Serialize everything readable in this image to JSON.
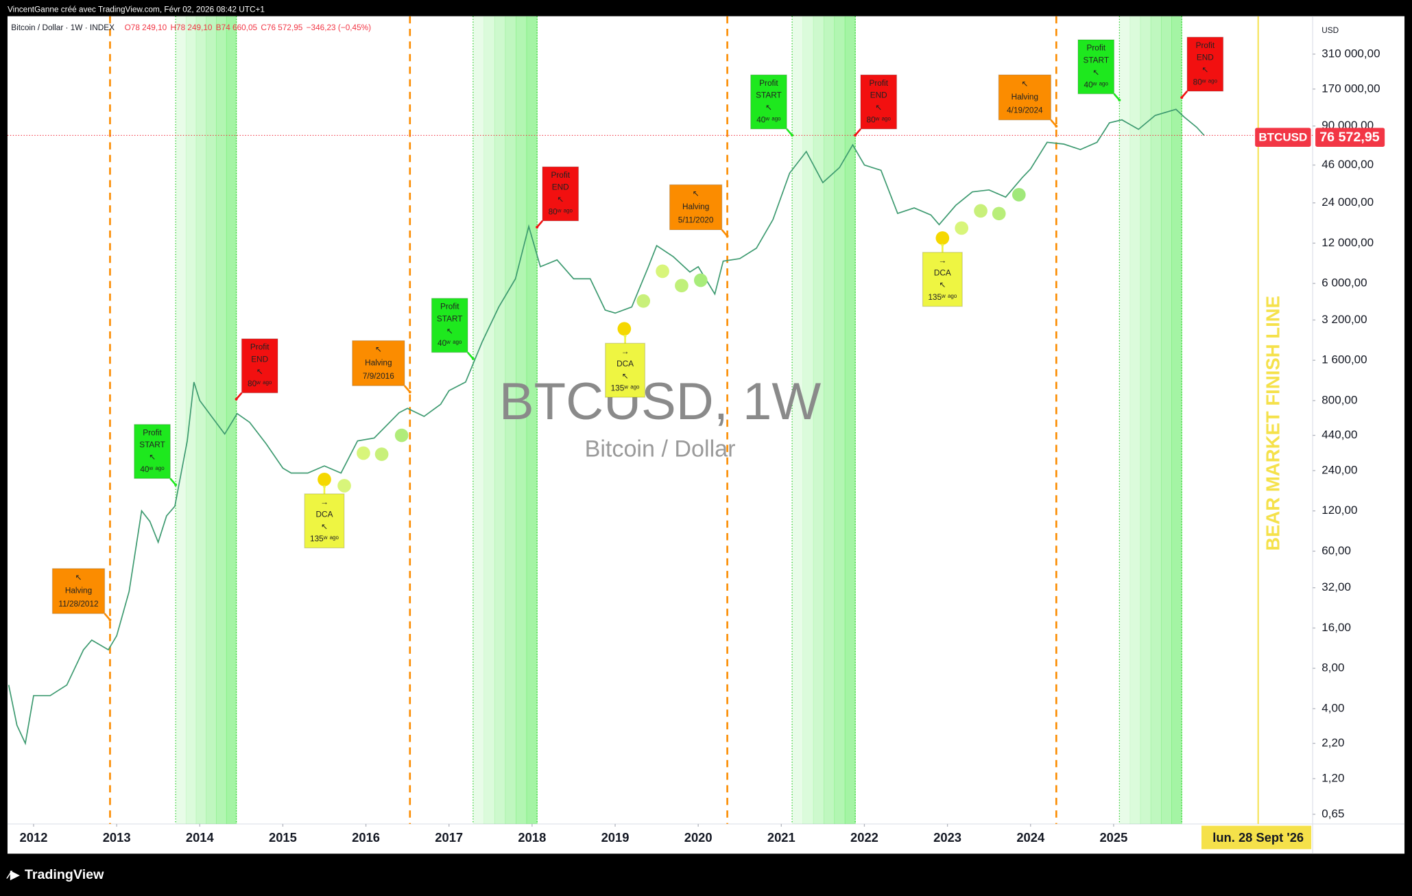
{
  "header": {
    "credit": "VincentGanne créé avec TradingView.com, Févr 02, 2026 08:42 UTC+1",
    "brand": "TradingView"
  },
  "chart_data": {
    "type": "line",
    "title": "BTCUSD, 1W",
    "subtitle": "Bitcoin / Dollar",
    "symbol_line": "Bitcoin / Dollar · 1W · INDEX",
    "ohlc": [
      "O78 249,10",
      "H78 249,10",
      "B74 660,05",
      "C76 572,95",
      "−346,23 (−0,45%)"
    ],
    "currency": "USD",
    "log_scale": true,
    "grid": false,
    "xlim": [
      2011.686,
      2027.396
    ],
    "xticks": [
      2012,
      2013,
      2014,
      2015,
      2016,
      2017,
      2018,
      2019,
      2020,
      2021,
      2022,
      2023,
      2024,
      2025
    ],
    "ylim": [
      0.55,
      595000
    ],
    "yticks": [
      {
        "value": 310000,
        "label": "310 000,00"
      },
      {
        "value": 170000,
        "label": "170 000,00"
      },
      {
        "value": 90000,
        "label": "90 000,00"
      },
      {
        "value": 46000,
        "label": "46 000,00"
      },
      {
        "value": 24000,
        "label": "24 000,00"
      },
      {
        "value": 12000,
        "label": "12 000,00"
      },
      {
        "value": 6000,
        "label": "6 000,00"
      },
      {
        "value": 3200,
        "label": "3 200,00"
      },
      {
        "value": 1600,
        "label": "1 600,00"
      },
      {
        "value": 800,
        "label": "800,00"
      },
      {
        "value": 440,
        "label": "440,00"
      },
      {
        "value": 240,
        "label": "240,00"
      },
      {
        "value": 120,
        "label": "120,00"
      },
      {
        "value": 60,
        "label": "60,00"
      },
      {
        "value": 32,
        "label": "32,00"
      },
      {
        "value": 16,
        "label": "16,00"
      },
      {
        "value": 8,
        "label": "8,00"
      },
      {
        "value": 4,
        "label": "4,00"
      },
      {
        "value": 2.2,
        "label": "2,20"
      },
      {
        "value": 1.2,
        "label": "1,20"
      },
      {
        "value": 0.65,
        "label": "0,65"
      }
    ],
    "x": [
      2011.7,
      2011.8,
      2011.9,
      2012.0,
      2012.2,
      2012.4,
      2012.6,
      2012.7,
      2012.9,
      2013.0,
      2013.15,
      2013.3,
      2013.4,
      2013.5,
      2013.6,
      2013.7,
      2013.85,
      2013.93,
      2014.0,
      2014.15,
      2014.3,
      2014.45,
      2014.6,
      2014.8,
      2015.0,
      2015.1,
      2015.3,
      2015.5,
      2015.7,
      2015.9,
      2016.1,
      2016.4,
      2016.5,
      2016.7,
      2016.9,
      2017.0,
      2017.2,
      2017.4,
      2017.6,
      2017.8,
      2017.96,
      2018.1,
      2018.3,
      2018.5,
      2018.7,
      2018.88,
      2019.0,
      2019.2,
      2019.4,
      2019.5,
      2019.7,
      2019.9,
      2020.0,
      2020.2,
      2020.3,
      2020.5,
      2020.7,
      2020.9,
      2021.1,
      2021.3,
      2021.5,
      2021.7,
      2021.86,
      2022.0,
      2022.2,
      2022.4,
      2022.6,
      2022.8,
      2022.9,
      2023.1,
      2023.3,
      2023.5,
      2023.7,
      2023.9,
      2024.0,
      2024.2,
      2024.4,
      2024.6,
      2024.8,
      2024.95,
      2025.1,
      2025.3,
      2025.5,
      2025.75,
      2025.85,
      2026.0,
      2026.09
    ],
    "series": [
      {
        "name": "BTCUSD",
        "color": "#3d9a70",
        "values": [
          6,
          3,
          2.2,
          5,
          5,
          6,
          11,
          13,
          11,
          14,
          30,
          120,
          100,
          70,
          110,
          130,
          400,
          1100,
          800,
          600,
          450,
          640,
          550,
          380,
          250,
          230,
          230,
          260,
          230,
          400,
          420,
          650,
          700,
          610,
          750,
          950,
          1100,
          2200,
          4000,
          6500,
          16000,
          8000,
          9000,
          6500,
          6500,
          3800,
          3600,
          4000,
          8000,
          11500,
          9500,
          7300,
          8000,
          5000,
          8800,
          9200,
          11000,
          18000,
          40000,
          58000,
          34000,
          44000,
          65000,
          46000,
          42000,
          20000,
          22000,
          19500,
          16500,
          23000,
          29000,
          30000,
          26500,
          37000,
          43000,
          68000,
          66000,
          60000,
          68000,
          95000,
          100000,
          85000,
          108000,
          120000,
          105000,
          88000,
          76572.95
        ]
      }
    ],
    "last_price": {
      "name": "BTCUSD",
      "value": 76572.95,
      "label": "76 572,95",
      "color": "#f23645"
    },
    "annotations": [
      {
        "x": 2012.92,
        "y": 18.4,
        "side": "left",
        "color": "#fb8c00",
        "lines": [
          "↖",
          "Halving",
          "11/28/2012"
        ]
      },
      {
        "x": 2013.71,
        "y": 188,
        "side": "left",
        "color": "#1ee81e",
        "lines": [
          "Profit",
          "START",
          "↖",
          "40ʷ ᵃᵍᵒ"
        ]
      },
      {
        "x": 2014.44,
        "y": 820,
        "side": "right",
        "color": "#f21010",
        "lines": [
          "Profit",
          "END",
          "↖",
          "80ʷ ᵃᵍᵒ"
        ]
      },
      {
        "x": 2015.5,
        "y": 182,
        "side": "below",
        "color": "#eef542",
        "lines": [
          "→",
          "DCA",
          "↖",
          "135ʷ ᵃᵍᵒ"
        ]
      },
      {
        "x": 2016.53,
        "y": 927,
        "side": "left",
        "color": "#fb8c00",
        "lines": [
          "↖",
          "Halving",
          "7/9/2016"
        ]
      },
      {
        "x": 2017.29,
        "y": 1645,
        "side": "left",
        "color": "#1ee81e",
        "lines": [
          "Profit",
          "START",
          "↖",
          "40ʷ ᵃᵍᵒ"
        ]
      },
      {
        "x": 2018.06,
        "y": 15800,
        "side": "right",
        "color": "#f21010",
        "lines": [
          "Profit",
          "END",
          "↖",
          "80ʷ ᵃᵍᵒ"
        ]
      },
      {
        "x": 2019.12,
        "y": 2427,
        "side": "below",
        "color": "#eef542",
        "lines": [
          "→",
          "DCA",
          "↖",
          "135ʷ ᵃᵍᵒ"
        ]
      },
      {
        "x": 2020.35,
        "y": 13550,
        "side": "left",
        "color": "#fb8c00",
        "lines": [
          "↖",
          "Halving",
          "5/11/2020"
        ]
      },
      {
        "x": 2021.13,
        "y": 76800,
        "side": "left",
        "color": "#1ee81e",
        "lines": [
          "Profit",
          "START",
          "↖",
          "40ʷ ᵃᵍᵒ"
        ]
      },
      {
        "x": 2021.89,
        "y": 76800,
        "side": "right",
        "color": "#f21010",
        "lines": [
          "Profit",
          "END",
          "↖",
          "80ʷ ᵃᵍᵒ"
        ]
      },
      {
        "x": 2022.94,
        "y": 11600,
        "side": "below",
        "color": "#eef542",
        "lines": [
          "→",
          "DCA",
          "↖",
          "135ʷ ᵃᵍᵒ"
        ]
      },
      {
        "x": 2024.31,
        "y": 89700,
        "side": "left",
        "color": "#fb8c00",
        "lines": [
          "↖",
          "Halving",
          "4/19/2024"
        ]
      },
      {
        "x": 2025.07,
        "y": 140500,
        "side": "left",
        "color": "#1ee81e",
        "lines": [
          "Profit",
          "START",
          "↖",
          "40ʷ ᵃᵍᵒ"
        ]
      },
      {
        "x": 2025.82,
        "y": 147000,
        "side": "right",
        "color": "#f21010",
        "lines": [
          "Profit",
          "END",
          "↖",
          "80ʷ ᵃᵍᵒ"
        ]
      }
    ],
    "dca_points": {
      "x": [
        2015.5,
        2015.74,
        2015.97,
        2016.19,
        2016.43,
        2019.11,
        2019.34,
        2019.57,
        2019.8,
        2020.03,
        2022.94,
        2023.17,
        2023.4,
        2023.62,
        2023.86
      ],
      "values": [
        206,
        185,
        324,
        318,
        440,
        2750,
        4435,
        7400,
        5780,
        6340,
        13100,
        15550,
        20900,
        19950,
        27600
      ],
      "colors": [
        "#f5d800",
        "#d8f57a",
        "#d8f57a",
        "#c8f07a",
        "#b0ec7a",
        "#f5d800",
        "#c8f07a",
        "#d8f57a",
        "#c0f07a",
        "#a8ec7a",
        "#f5d800",
        "#d8f57a",
        "#c8f07a",
        "#b8ee7a",
        "#a0e87a"
      ]
    },
    "bear_line": {
      "x": 2026.74,
      "label": "lun. 28 Sept '26",
      "text": "BEAR MARKET FINISH LINE",
      "color": "#f5e14a"
    }
  }
}
